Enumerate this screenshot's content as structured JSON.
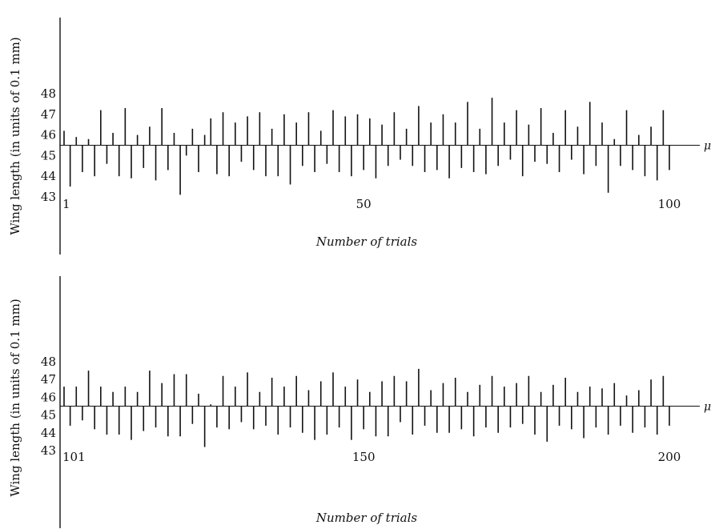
{
  "chart_data": [
    {
      "type": "line",
      "ylabel": "Wing length (in units of 0.1 mm)",
      "xlabel": "Number of trials",
      "y_ticks": [
        "43",
        "44",
        "45",
        "46",
        "47",
        "48"
      ],
      "x_ticks": [
        {
          "value": 1,
          "label": "1"
        },
        {
          "value": 50,
          "label": "50"
        },
        {
          "value": 100,
          "label": "100"
        }
      ],
      "mean_label": "μ",
      "mean": 45.5,
      "ylim": [
        42.5,
        48.5
      ],
      "xlim": [
        1,
        100
      ],
      "series": [
        {
          "x": [
            1,
            2,
            3,
            4,
            5,
            6,
            7,
            8,
            9,
            10,
            11,
            12,
            13,
            14,
            15,
            16,
            17,
            18,
            19,
            20,
            21,
            22,
            23,
            24,
            25,
            26,
            27,
            28,
            29,
            30,
            31,
            32,
            33,
            34,
            35,
            36,
            37,
            38,
            39,
            40,
            41,
            42,
            43,
            44,
            45,
            46,
            47,
            48,
            49,
            50,
            51,
            52,
            53,
            54,
            55,
            56,
            57,
            58,
            59,
            60,
            61,
            62,
            63,
            64,
            65,
            66,
            67,
            68,
            69,
            70,
            71,
            72,
            73,
            74,
            75,
            76,
            77,
            78,
            79,
            80,
            81,
            82,
            83,
            84,
            85,
            86,
            87,
            88,
            89,
            90,
            91,
            92,
            93,
            94,
            95,
            96,
            97,
            98,
            99,
            100
          ],
          "y": [
            46.2,
            43.5,
            45.9,
            44.2,
            45.8,
            44.0,
            47.2,
            44.6,
            46.1,
            44.0,
            47.3,
            43.9,
            46.0,
            44.4,
            46.4,
            43.8,
            47.3,
            44.3,
            46.1,
            43.1,
            45.0,
            46.3,
            44.2,
            46.0,
            46.8,
            44.1,
            47.1,
            44.0,
            46.6,
            44.7,
            46.9,
            44.3,
            47.1,
            44.0,
            46.3,
            44.0,
            47.0,
            43.6,
            46.6,
            44.5,
            47.1,
            44.2,
            46.2,
            44.6,
            47.2,
            44.2,
            46.9,
            44.0,
            47.0,
            44.3,
            46.8,
            43.9,
            46.5,
            44.5,
            47.1,
            44.8,
            46.3,
            44.5,
            47.4,
            44.2,
            46.6,
            44.3,
            47.0,
            43.9,
            46.6,
            44.4,
            47.6,
            44.2,
            46.3,
            44.1,
            47.8,
            44.5,
            46.6,
            44.8,
            47.2,
            44.0,
            46.5,
            44.7,
            47.3,
            44.6,
            46.1,
            44.2,
            47.2,
            44.8,
            46.4,
            44.1,
            47.6,
            44.5,
            46.6,
            43.2,
            45.8,
            44.5,
            47.2,
            44.3,
            46.0,
            44.0,
            46.4,
            43.8,
            47.2,
            44.3
          ]
        }
      ]
    },
    {
      "type": "line",
      "ylabel": "Wing length (in units of 0.1 mm)",
      "xlabel": "Number of trials",
      "y_ticks": [
        "43",
        "44",
        "45",
        "46",
        "47",
        "48"
      ],
      "x_ticks": [
        {
          "value": 101,
          "label": "101"
        },
        {
          "value": 150,
          "label": "150"
        },
        {
          "value": 200,
          "label": "200"
        }
      ],
      "mean_label": "μ",
      "mean": 45.5,
      "ylim": [
        42.5,
        48.5
      ],
      "xlim": [
        101,
        200
      ],
      "series": [
        {
          "x": [
            101,
            102,
            103,
            104,
            105,
            106,
            107,
            108,
            109,
            110,
            111,
            112,
            113,
            114,
            115,
            116,
            117,
            118,
            119,
            120,
            121,
            122,
            123,
            124,
            125,
            126,
            127,
            128,
            129,
            130,
            131,
            132,
            133,
            134,
            135,
            136,
            137,
            138,
            139,
            140,
            141,
            142,
            143,
            144,
            145,
            146,
            147,
            148,
            149,
            150,
            151,
            152,
            153,
            154,
            155,
            156,
            157,
            158,
            159,
            160,
            161,
            162,
            163,
            164,
            165,
            166,
            167,
            168,
            169,
            170,
            171,
            172,
            173,
            174,
            175,
            176,
            177,
            178,
            179,
            180,
            181,
            182,
            183,
            184,
            185,
            186,
            187,
            188,
            189,
            190,
            191,
            192,
            193,
            194,
            195,
            196,
            197,
            198,
            199,
            200
          ],
          "y": [
            46.6,
            44.4,
            46.6,
            44.7,
            47.5,
            44.2,
            46.6,
            43.9,
            46.3,
            43.9,
            46.6,
            43.6,
            46.3,
            44.1,
            47.5,
            44.3,
            46.8,
            43.8,
            47.3,
            43.8,
            47.3,
            44.5,
            46.2,
            43.2,
            45.6,
            44.3,
            47.2,
            44.2,
            46.6,
            44.6,
            47.4,
            44.2,
            46.3,
            44.4,
            47.1,
            43.9,
            46.6,
            44.3,
            47.2,
            44.0,
            46.4,
            43.6,
            46.9,
            43.9,
            47.4,
            44.3,
            46.6,
            43.6,
            47.0,
            44.2,
            46.3,
            43.8,
            46.9,
            43.8,
            47.2,
            44.6,
            46.9,
            43.9,
            47.6,
            44.4,
            46.4,
            44.0,
            46.8,
            44.0,
            47.1,
            44.2,
            46.3,
            43.8,
            46.7,
            44.3,
            47.2,
            44.0,
            46.6,
            44.3,
            46.8,
            44.5,
            47.2,
            43.9,
            46.3,
            43.5,
            46.7,
            44.4,
            47.1,
            44.2,
            46.3,
            43.7,
            46.6,
            44.3,
            46.5,
            43.9,
            46.8,
            44.4,
            46.1,
            44.0,
            46.4,
            44.3,
            47.0,
            43.9,
            47.2,
            44.4
          ]
        }
      ]
    }
  ]
}
